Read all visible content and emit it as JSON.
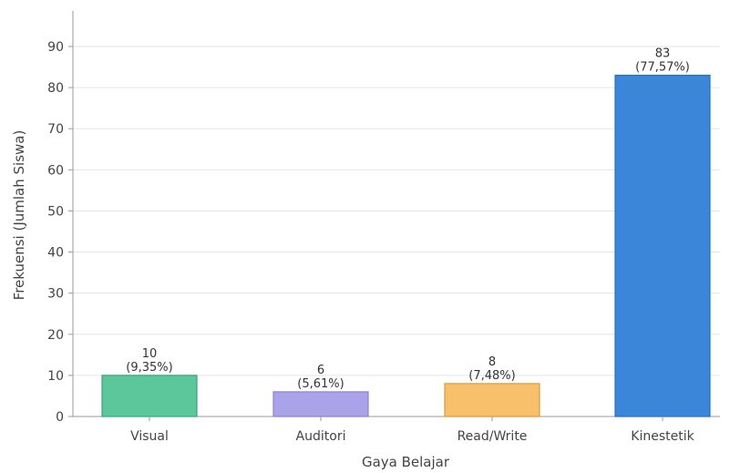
{
  "chart_data": {
    "type": "bar",
    "title": "",
    "xlabel": "Gaya Belajar",
    "ylabel": "Frekuensi (Jumlah Siswa)",
    "categories": [
      "Visual",
      "Auditori",
      "Read/Write",
      "Kinestetik"
    ],
    "values": [
      10,
      6,
      8,
      83
    ],
    "percent_labels": [
      "(9,35%)",
      "(5,61%)",
      "(7,48%)",
      "(77,57%)"
    ],
    "colors": [
      "#5cc79b",
      "#aaa3ea",
      "#f8c06a",
      "#3b86d8"
    ],
    "edge_colors": [
      "#3aa37a",
      "#8a82d6",
      "#d89a3c",
      "#2a6fbf"
    ],
    "ylim": [
      0,
      90
    ],
    "yticks": [
      0,
      10,
      20,
      30,
      40,
      50,
      60,
      70,
      80,
      90
    ],
    "grid": "horizontal",
    "legend": "none"
  }
}
